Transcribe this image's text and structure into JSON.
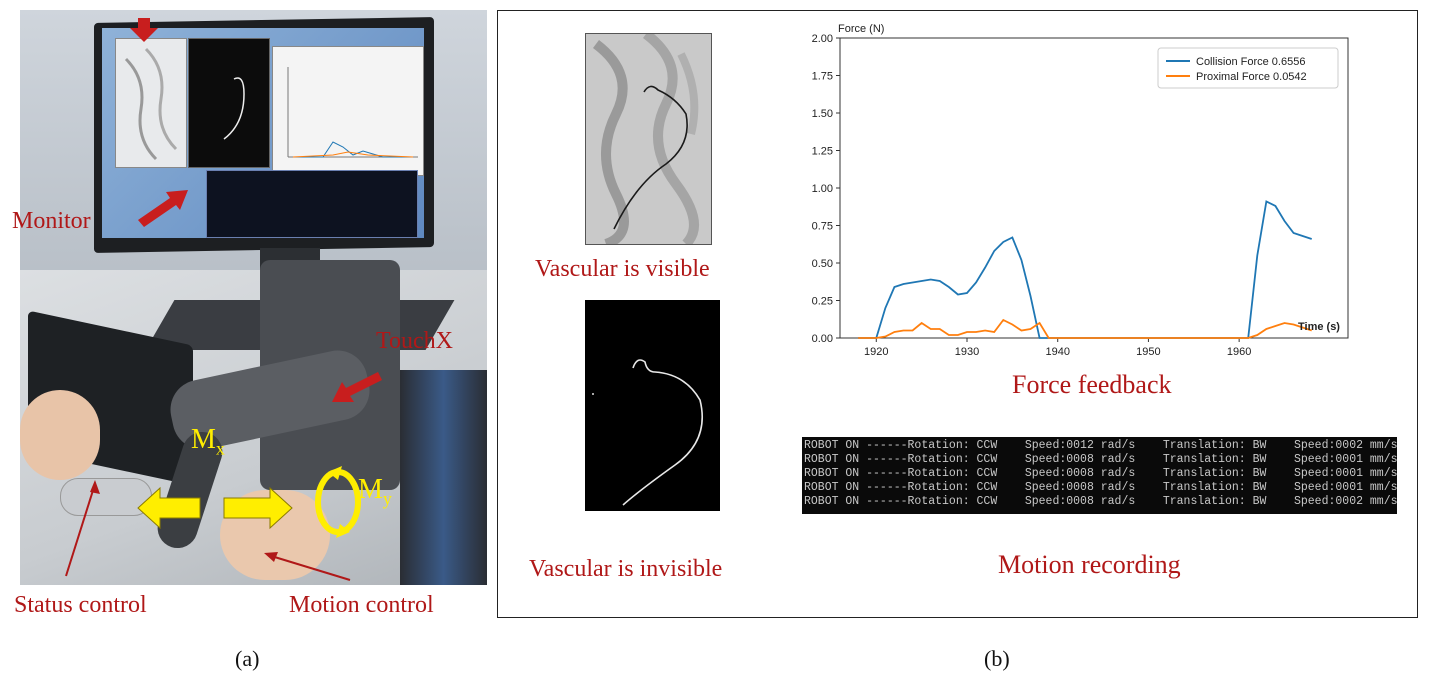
{
  "panel_a": {
    "labels": {
      "monitor": "Monitor",
      "touchx": "TouchX",
      "mx": "M",
      "mx_sub": "x",
      "my": "M",
      "my_sub": "y",
      "status_control": "Status control",
      "motion_control": "Motion control"
    },
    "caption": "(a)"
  },
  "panel_b": {
    "labels": {
      "vascular_visible": "Vascular is visible",
      "vascular_invisible": "Vascular is invisible",
      "force_feedback": "Force feedback",
      "motion_recording": "Motion recording"
    },
    "caption": "(b)",
    "console_lines": [
      "ROBOT ON ------Rotation: CCW    Speed:0012 rad/s    Translation: BW    Speed:0002 mm/s",
      "ROBOT ON ------Rotation: CCW    Speed:0008 rad/s    Translation: BW    Speed:0001 mm/s",
      "ROBOT ON ------Rotation: CCW    Speed:0008 rad/s    Translation: BW    Speed:0001 mm/s",
      "ROBOT ON ------Rotation: CCW    Speed:0008 rad/s    Translation: BW    Speed:0001 mm/s",
      "ROBOT ON ------Rotation: CCW    Speed:0008 rad/s    Translation: BW    Speed:0002 mm/s"
    ]
  },
  "colors": {
    "label_red": "#b01818",
    "arrow_yellow": "#ffee00",
    "series_collision": "#1f77b4",
    "series_proximal": "#ff7f0e"
  },
  "chart_data": {
    "type": "line",
    "title": "",
    "xlabel": "Time (s)",
    "ylabel": "Force (N)",
    "xlim": [
      1916,
      1972
    ],
    "ylim": [
      0,
      2.0
    ],
    "xticks": [
      1920,
      1930,
      1940,
      1950,
      1960
    ],
    "xtick_labels": [
      "1920",
      "1930",
      "1940",
      "1950",
      "1960"
    ],
    "yticks": [
      0,
      0.25,
      0.5,
      0.75,
      1.0,
      1.25,
      1.5,
      1.75,
      2.0
    ],
    "ytick_labels": [
      "0.00",
      "0.25",
      "0.50",
      "0.75",
      "1.00",
      "1.25",
      "1.50",
      "1.75",
      "2.00"
    ],
    "legend_position": "top-right",
    "series": [
      {
        "name": "Collision Force 0.6556",
        "color": "#1f77b4",
        "x": [
          1918,
          1920,
          1921,
          1922,
          1923,
          1924,
          1925,
          1926,
          1927,
          1928,
          1929,
          1930,
          1931,
          1932,
          1933,
          1934,
          1935,
          1936,
          1937,
          1938,
          1939,
          1945,
          1950,
          1955,
          1961,
          1962,
          1963,
          1964,
          1965,
          1966,
          1967,
          1968
        ],
        "y": [
          0.0,
          0.0,
          0.2,
          0.34,
          0.36,
          0.37,
          0.38,
          0.39,
          0.38,
          0.34,
          0.29,
          0.3,
          0.37,
          0.47,
          0.58,
          0.64,
          0.67,
          0.52,
          0.28,
          0.0,
          0.0,
          0.0,
          0.0,
          0.0,
          0.0,
          0.55,
          0.91,
          0.88,
          0.78,
          0.7,
          0.68,
          0.66
        ]
      },
      {
        "name": "Proximal  Force 0.0542",
        "color": "#ff7f0e",
        "x": [
          1918,
          1920,
          1921,
          1922,
          1923,
          1924,
          1925,
          1926,
          1927,
          1928,
          1929,
          1930,
          1931,
          1932,
          1933,
          1934,
          1935,
          1936,
          1937,
          1938,
          1939,
          1945,
          1950,
          1955,
          1961,
          1962,
          1963,
          1964,
          1965,
          1966,
          1967,
          1968
        ],
        "y": [
          0.0,
          0.0,
          0.01,
          0.04,
          0.05,
          0.05,
          0.1,
          0.06,
          0.06,
          0.02,
          0.02,
          0.04,
          0.04,
          0.05,
          0.04,
          0.12,
          0.09,
          0.05,
          0.06,
          0.1,
          0.0,
          0.0,
          0.0,
          0.0,
          0.0,
          0.02,
          0.06,
          0.08,
          0.1,
          0.09,
          0.07,
          0.05
        ]
      }
    ]
  }
}
